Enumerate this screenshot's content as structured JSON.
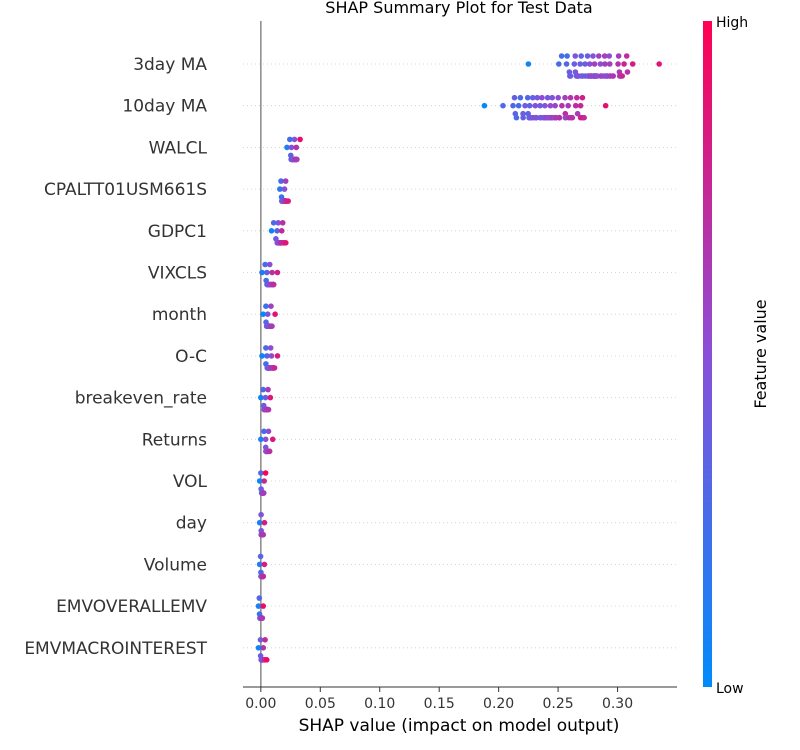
{
  "chart_data": {
    "type": "scatter",
    "title": "SHAP Summary Plot for Test Data",
    "xlabel": "SHAP value (impact on model output)",
    "xlim": [
      -0.015,
      0.35
    ],
    "xticks": [
      "0.00",
      "0.05",
      "0.10",
      "0.15",
      "0.20",
      "0.25",
      "0.30"
    ],
    "xtick_values": [
      0.0,
      0.05,
      0.1,
      0.15,
      0.2,
      0.25,
      0.3
    ],
    "grid": "dotted horizontal per feature",
    "zero_line": true,
    "colorbar": {
      "title": "Feature value",
      "high_label": "High",
      "low_label": "Low",
      "low_color": "#008bfb",
      "high_color": "#ff0052"
    },
    "features": [
      {
        "name": "3day MA",
        "center": 0.285,
        "spread": 0.055,
        "min": 0.225,
        "max": 0.335,
        "count": 70
      },
      {
        "name": "10day MA",
        "center": 0.245,
        "spread": 0.05,
        "min": 0.188,
        "max": 0.29,
        "count": 70
      },
      {
        "name": "WALCL",
        "center": 0.026,
        "spread": 0.005,
        "min": 0.022,
        "max": 0.033,
        "count": 25
      },
      {
        "name": "CPALTT01USM661S",
        "center": 0.02,
        "spread": 0.004,
        "min": 0.016,
        "max": 0.023,
        "count": 25
      },
      {
        "name": "GDPC1",
        "center": 0.017,
        "spread": 0.006,
        "min": 0.009,
        "max": 0.021,
        "count": 25
      },
      {
        "name": "VIXCLS",
        "center": 0.009,
        "spread": 0.006,
        "min": 0.001,
        "max": 0.014,
        "count": 28
      },
      {
        "name": "month",
        "center": 0.007,
        "spread": 0.004,
        "min": 0.002,
        "max": 0.012,
        "count": 22
      },
      {
        "name": "O-C",
        "center": 0.006,
        "spread": 0.006,
        "min": 0.001,
        "max": 0.014,
        "count": 26
      },
      {
        "name": "breakeven_rate",
        "center": 0.003,
        "spread": 0.003,
        "min": 0.0,
        "max": 0.008,
        "count": 20
      },
      {
        "name": "Returns",
        "center": 0.003,
        "spread": 0.003,
        "min": 0.0,
        "max": 0.01,
        "count": 22
      },
      {
        "name": "VOL",
        "center": 0.001,
        "spread": 0.002,
        "min": -0.001,
        "max": 0.004,
        "count": 18
      },
      {
        "name": "day",
        "center": 0.001,
        "spread": 0.002,
        "min": -0.001,
        "max": 0.003,
        "count": 18
      },
      {
        "name": "Volume",
        "center": 0.0005,
        "spread": 0.002,
        "min": -0.001,
        "max": 0.003,
        "count": 18
      },
      {
        "name": "EMVOVERALLEMV",
        "center": 0.0,
        "spread": 0.002,
        "min": -0.002,
        "max": 0.002,
        "count": 22
      },
      {
        "name": "EMVMACROINTEREST",
        "center": 0.0,
        "spread": 0.002,
        "min": -0.002,
        "max": 0.005,
        "count": 22
      }
    ]
  }
}
